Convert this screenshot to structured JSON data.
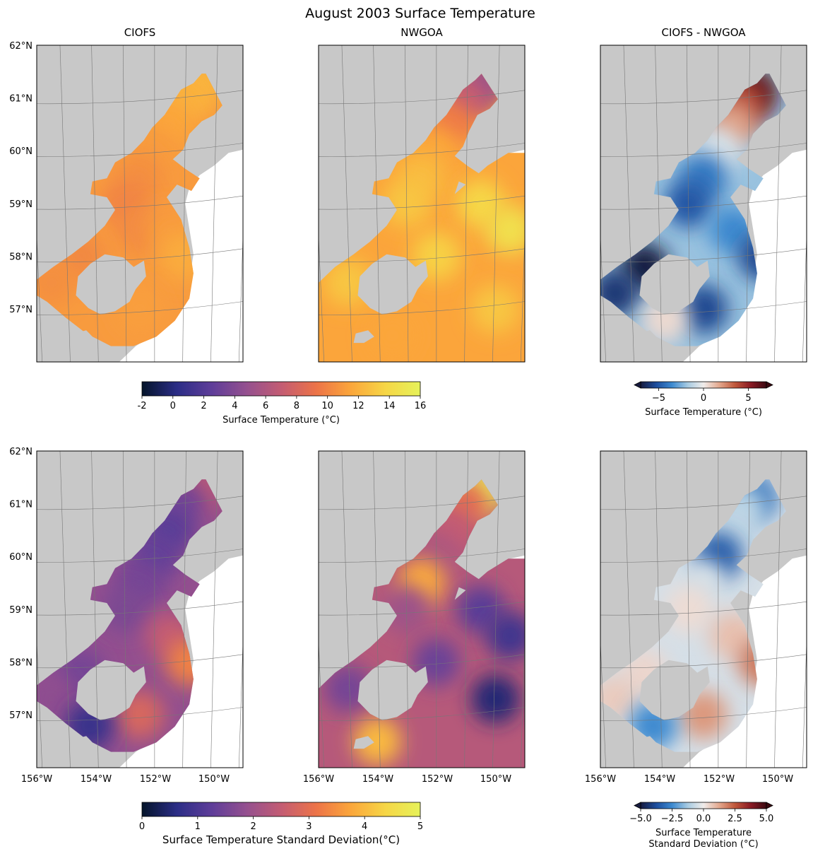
{
  "suptitle": "August 2003 Surface Temperature",
  "colors": {
    "land": "#c8c8c8",
    "gridline": "#777777",
    "mask": "#ffffff",
    "thermal": [
      "#04142a",
      "#2b2d86",
      "#5e3d99",
      "#94508f",
      "#c35c73",
      "#ec7348",
      "#fba63b",
      "#f6d646",
      "#e6f25a"
    ],
    "balance": [
      "#171b3f",
      "#1c4e9e",
      "#3d8ad0",
      "#a8cbe2",
      "#f0ecea",
      "#e3a88e",
      "#c0583b",
      "#8a1a24",
      "#3c0911"
    ]
  },
  "chart_data": [
    {
      "type": "heatmap",
      "title": "CIOFS",
      "ylabel_ticks": [
        "62°N",
        "61°N",
        "60°N",
        "59°N",
        "58°N",
        "57°N"
      ],
      "xlabel_ticks": [],
      "xlim": [
        -156,
        -149
      ],
      "ylim": [
        56,
        62
      ],
      "colormap": "thermal",
      "domain": "ciofs",
      "values": [
        {
          "lon": -150.5,
          "lat": 61.25,
          "v": 12.2
        },
        {
          "lon": -151.0,
          "lat": 61.0,
          "v": 12.0
        },
        {
          "lon": -151.5,
          "lat": 60.5,
          "v": 11.5
        },
        {
          "lon": -152.0,
          "lat": 60.0,
          "v": 11.0
        },
        {
          "lon": -152.5,
          "lat": 59.5,
          "v": 10.5
        },
        {
          "lon": -153.0,
          "lat": 59.0,
          "v": 10.0
        },
        {
          "lon": -152.5,
          "lat": 58.5,
          "v": 10.3
        },
        {
          "lon": -151.5,
          "lat": 58.5,
          "v": 11.0
        },
        {
          "lon": -151.0,
          "lat": 58.0,
          "v": 11.8
        },
        {
          "lon": -154.5,
          "lat": 58.0,
          "v": 10.2
        },
        {
          "lon": -155.5,
          "lat": 57.5,
          "v": 10.5
        },
        {
          "lon": -152.5,
          "lat": 57.0,
          "v": 11.2
        }
      ]
    },
    {
      "type": "heatmap",
      "title": "NWGOA",
      "ylabel_ticks": [],
      "xlabel_ticks": [],
      "xlim": [
        -156,
        -149
      ],
      "ylim": [
        56,
        62
      ],
      "colormap": "thermal",
      "domain": "nwgoa",
      "values": [
        {
          "lon": -150.5,
          "lat": 61.25,
          "v": 4.5
        },
        {
          "lon": -151.0,
          "lat": 61.0,
          "v": 7.0
        },
        {
          "lon": -151.5,
          "lat": 60.5,
          "v": 9.5
        },
        {
          "lon": -152.0,
          "lat": 60.0,
          "v": 11.5
        },
        {
          "lon": -152.5,
          "lat": 59.5,
          "v": 12.5
        },
        {
          "lon": -153.0,
          "lat": 59.0,
          "v": 13.0
        },
        {
          "lon": -150.5,
          "lat": 59.0,
          "v": 13.8
        },
        {
          "lon": -149.5,
          "lat": 58.5,
          "v": 14.5
        },
        {
          "lon": -152.0,
          "lat": 58.0,
          "v": 13.5
        },
        {
          "lon": -155.0,
          "lat": 57.5,
          "v": 13.0
        },
        {
          "lon": -153.5,
          "lat": 56.5,
          "v": 11.5
        },
        {
          "lon": -150.0,
          "lat": 57.0,
          "v": 13.0
        }
      ]
    },
    {
      "type": "heatmap",
      "title": "CIOFS - NWGOA",
      "ylabel_ticks": [],
      "xlabel_ticks": [],
      "xlim": [
        -156,
        -149
      ],
      "ylim": [
        56,
        62
      ],
      "colormap": "balance",
      "domain": "ciofs",
      "values": [
        {
          "lon": -150.8,
          "lat": 61.1,
          "v": 6.5
        },
        {
          "lon": -151.2,
          "lat": 60.9,
          "v": 4.0
        },
        {
          "lon": -151.5,
          "lat": 60.5,
          "v": 2.0
        },
        {
          "lon": -152.0,
          "lat": 60.0,
          "v": -0.5
        },
        {
          "lon": -152.5,
          "lat": 59.5,
          "v": -4.0
        },
        {
          "lon": -153.0,
          "lat": 59.0,
          "v": -5.0
        },
        {
          "lon": -151.5,
          "lat": 58.5,
          "v": -3.5
        },
        {
          "lon": -150.5,
          "lat": 58.0,
          "v": -5.5
        },
        {
          "lon": -154.5,
          "lat": 57.8,
          "v": -7.0
        },
        {
          "lon": -155.5,
          "lat": 57.3,
          "v": -6.0
        },
        {
          "lon": -152.5,
          "lat": 57.0,
          "v": -5.5
        },
        {
          "lon": -153.8,
          "lat": 56.8,
          "v": 0.5
        }
      ]
    },
    {
      "type": "heatmap",
      "title": "",
      "ylabel_ticks": [
        "62°N",
        "61°N",
        "60°N",
        "59°N",
        "58°N",
        "57°N"
      ],
      "xlabel_ticks": [
        "156°W",
        "154°W",
        "152°W",
        "150°W"
      ],
      "xlim": [
        -156,
        -149
      ],
      "ylim": [
        56,
        62
      ],
      "colormap": "thermal",
      "domain": "ciofs",
      "values": [
        {
          "lon": -150.5,
          "lat": 61.25,
          "v": 2.5
        },
        {
          "lon": -151.0,
          "lat": 61.0,
          "v": 1.5
        },
        {
          "lon": -151.5,
          "lat": 60.5,
          "v": 1.2
        },
        {
          "lon": -152.0,
          "lat": 60.0,
          "v": 1.3
        },
        {
          "lon": -152.5,
          "lat": 59.5,
          "v": 1.5
        },
        {
          "lon": -153.0,
          "lat": 59.0,
          "v": 1.6
        },
        {
          "lon": -151.5,
          "lat": 58.5,
          "v": 2.5
        },
        {
          "lon": -150.8,
          "lat": 58.0,
          "v": 3.3
        },
        {
          "lon": -154.5,
          "lat": 57.8,
          "v": 1.5
        },
        {
          "lon": -155.5,
          "lat": 57.3,
          "v": 1.8
        },
        {
          "lon": -152.5,
          "lat": 57.0,
          "v": 2.8
        },
        {
          "lon": -154.2,
          "lat": 56.8,
          "v": 0.8
        }
      ]
    },
    {
      "type": "heatmap",
      "title": "",
      "ylabel_ticks": [],
      "xlabel_ticks": [
        "156°W",
        "154°W",
        "152°W",
        "150°W"
      ],
      "xlim": [
        -156,
        -149
      ],
      "ylim": [
        56,
        62
      ],
      "colormap": "thermal",
      "domain": "nwgoa",
      "values": [
        {
          "lon": -150.5,
          "lat": 61.25,
          "v": 5.0
        },
        {
          "lon": -151.0,
          "lat": 61.0,
          "v": 3.0
        },
        {
          "lon": -151.5,
          "lat": 60.5,
          "v": 2.5
        },
        {
          "lon": -152.0,
          "lat": 60.0,
          "v": 2.2
        },
        {
          "lon": -152.5,
          "lat": 59.5,
          "v": 3.8
        },
        {
          "lon": -153.0,
          "lat": 59.0,
          "v": 2.0
        },
        {
          "lon": -150.5,
          "lat": 59.0,
          "v": 1.2
        },
        {
          "lon": -149.5,
          "lat": 58.5,
          "v": 0.9
        },
        {
          "lon": -150.0,
          "lat": 57.3,
          "v": 0.5
        },
        {
          "lon": -155.0,
          "lat": 57.5,
          "v": 1.5
        },
        {
          "lon": -154.0,
          "lat": 56.5,
          "v": 4.0
        },
        {
          "lon": -152.0,
          "lat": 58.0,
          "v": 1.4
        }
      ]
    },
    {
      "type": "heatmap",
      "title": "",
      "ylabel_ticks": [],
      "xlabel_ticks": [
        "156°W",
        "154°W",
        "152°W",
        "150°W"
      ],
      "xlim": [
        -156,
        -149
      ],
      "ylim": [
        56,
        62
      ],
      "colormap": "balance",
      "domain": "ciofs",
      "values": [
        {
          "lon": -150.8,
          "lat": 61.1,
          "v": -3.0
        },
        {
          "lon": -151.2,
          "lat": 60.9,
          "v": -1.0
        },
        {
          "lon": -151.5,
          "lat": 60.5,
          "v": -0.8
        },
        {
          "lon": -152.0,
          "lat": 60.0,
          "v": -3.5
        },
        {
          "lon": -152.5,
          "lat": 59.5,
          "v": -0.5
        },
        {
          "lon": -153.0,
          "lat": 59.0,
          "v": 0.3
        },
        {
          "lon": -151.5,
          "lat": 58.5,
          "v": 0.8
        },
        {
          "lon": -150.5,
          "lat": 58.0,
          "v": 2.0
        },
        {
          "lon": -154.5,
          "lat": 57.8,
          "v": 0.4
        },
        {
          "lon": -155.5,
          "lat": 57.3,
          "v": 0.6
        },
        {
          "lon": -152.5,
          "lat": 57.0,
          "v": 1.5
        },
        {
          "lon": -154.2,
          "lat": 56.8,
          "v": -2.5
        }
      ]
    }
  ],
  "colorbars": [
    {
      "label": "Surface Temperature (°C)",
      "ticks": [
        "-2",
        "0",
        "2",
        "4",
        "6",
        "8",
        "10",
        "12",
        "14",
        "16"
      ],
      "range": [
        -2,
        16
      ],
      "colormap": "thermal",
      "extend": false
    },
    {
      "label": "Surface Temperature (°C)",
      "ticks": [
        "−5",
        "0",
        "5"
      ],
      "range": [
        -7,
        7
      ],
      "colormap": "balance",
      "extend": true
    },
    {
      "label": "Surface Temperature Standard Deviation(°C)",
      "ticks": [
        "0",
        "1",
        "2",
        "3",
        "4",
        "5"
      ],
      "range": [
        0,
        5
      ],
      "colormap": "thermal",
      "extend": false
    },
    {
      "label_lines": [
        "Surface Temperature",
        "Standard Deviation (°C)"
      ],
      "ticks": [
        "−5.0",
        "−2.5",
        "0.0",
        "2.5",
        "5.0"
      ],
      "range": [
        -5,
        5
      ],
      "colormap": "balance",
      "extend": true
    }
  ]
}
